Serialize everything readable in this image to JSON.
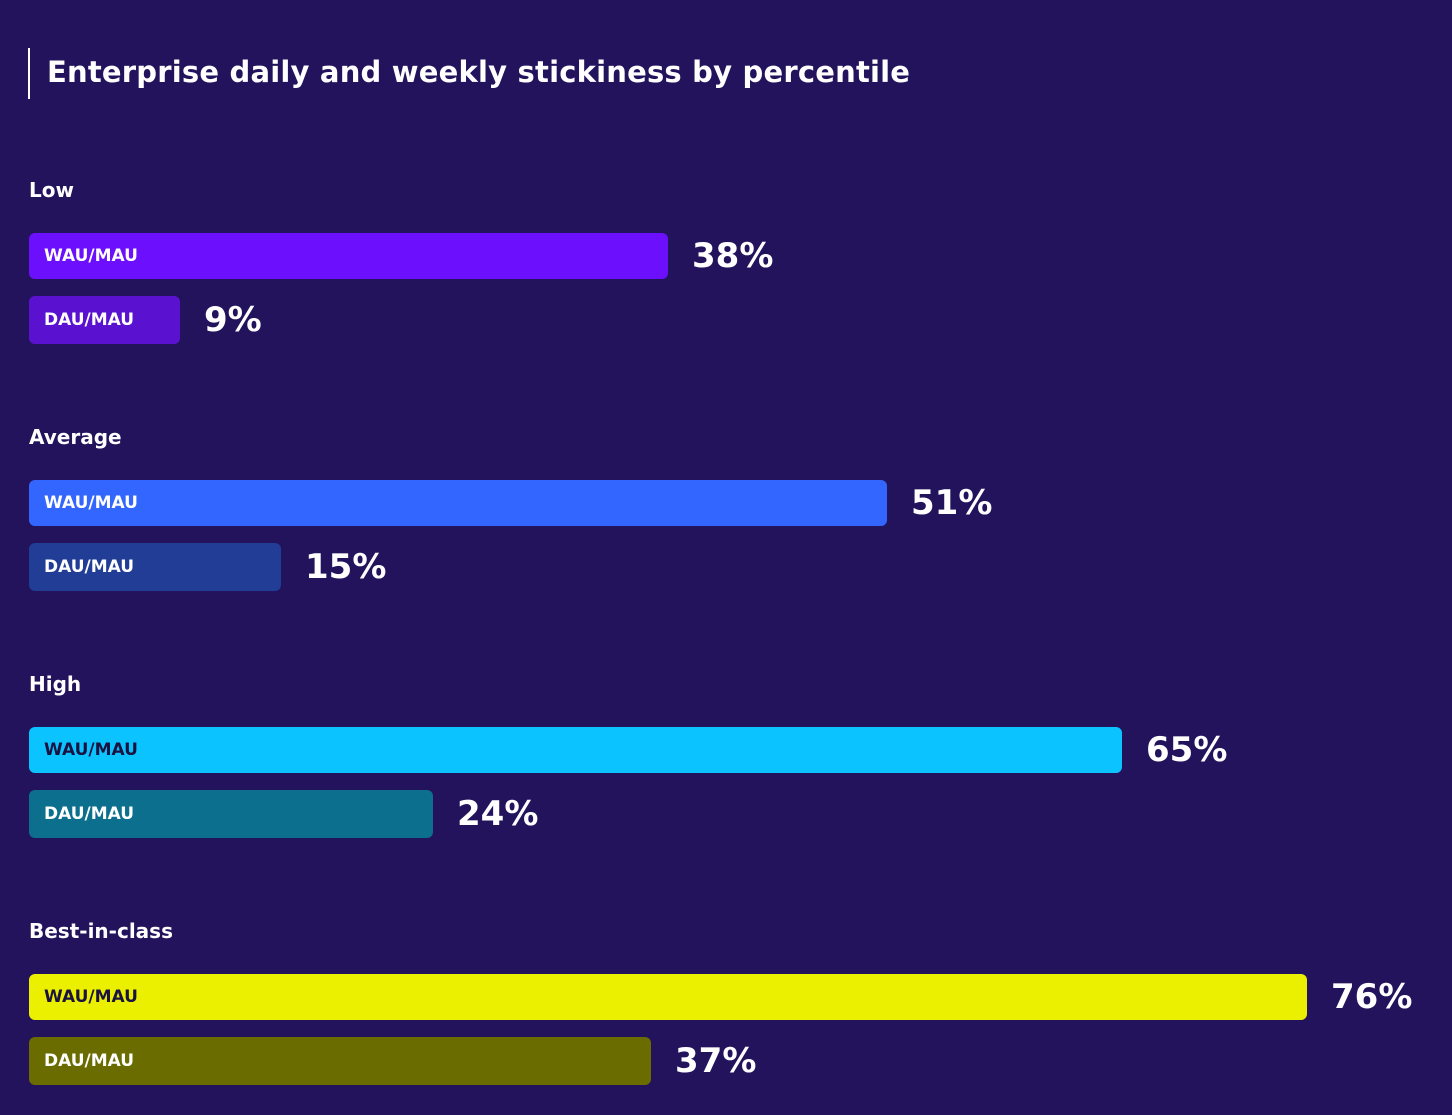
{
  "chart_data": {
    "type": "bar",
    "orientation": "horizontal",
    "title": "Enterprise daily and weekly stickiness by percentile",
    "xlim": [
      0,
      76
    ],
    "grid": false,
    "groups": [
      {
        "name": "Low",
        "bars": [
          {
            "label": "WAU/MAU",
            "value": 38,
            "display": "38%",
            "color": "#6c0ffd",
            "label_color": "#ffffff"
          },
          {
            "label": "DAU/MAU",
            "value": 9,
            "display": "9%",
            "color": "#5b12d0",
            "label_color": "#ffffff"
          }
        ]
      },
      {
        "name": "Average",
        "bars": [
          {
            "label": "WAU/MAU",
            "value": 51,
            "display": "51%",
            "color": "#3366ff",
            "label_color": "#ffffff"
          },
          {
            "label": "DAU/MAU",
            "value": 15,
            "display": "15%",
            "color": "#213d96",
            "label_color": "#ffffff"
          }
        ]
      },
      {
        "name": "High",
        "bars": [
          {
            "label": "WAU/MAU",
            "value": 65,
            "display": "65%",
            "color": "#0bc4ff",
            "label_color": "#1a1240"
          },
          {
            "label": "DAU/MAU",
            "value": 24,
            "display": "24%",
            "color": "#0c6f8e",
            "label_color": "#ffffff"
          }
        ]
      },
      {
        "name": "Best-in-class",
        "bars": [
          {
            "label": "WAU/MAU",
            "value": 76,
            "display": "76%",
            "color": "#ebf000",
            "label_color": "#1a1240"
          },
          {
            "label": "DAU/MAU",
            "value": 37,
            "display": "37%",
            "color": "#6b6c00",
            "label_color": "#ffffff"
          }
        ]
      }
    ]
  }
}
